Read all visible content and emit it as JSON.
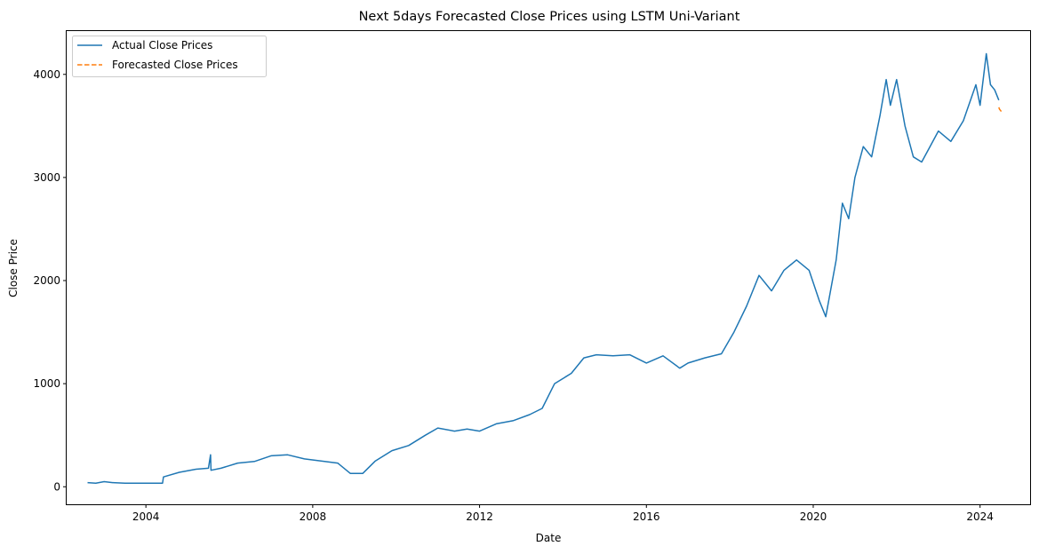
{
  "chart_data": {
    "type": "line",
    "title": "Next 5days Forecasted Close Prices using LSTM Uni-Variant",
    "xlabel": "Date",
    "ylabel": "Close Price",
    "xlim": [
      2002.1,
      2025.2
    ],
    "ylim": [
      -170,
      4420
    ],
    "x_ticks": [
      2004,
      2008,
      2012,
      2016,
      2020,
      2024
    ],
    "x_tick_labels": [
      "2004",
      "2008",
      "2012",
      "2016",
      "2020",
      "2024"
    ],
    "y_ticks": [
      0,
      1000,
      2000,
      3000,
      4000
    ],
    "y_tick_labels": [
      "0",
      "1000",
      "2000",
      "3000",
      "4000"
    ],
    "grid": false,
    "legend": "top-left",
    "colors": {
      "actual": "#1f77b4",
      "forecast": "#ff7f0e"
    },
    "series": [
      {
        "name": "Actual Close Prices",
        "style": "solid",
        "x": [
          2002.6,
          2002.8,
          2003.0,
          2003.2,
          2003.5,
          2004.0,
          2004.4,
          2004.42,
          2004.8,
          2005.2,
          2005.5,
          2005.55,
          2005.56,
          2005.8,
          2006.2,
          2006.6,
          2007.0,
          2007.4,
          2007.8,
          2008.2,
          2008.6,
          2008.9,
          2009.2,
          2009.5,
          2009.9,
          2010.3,
          2010.7,
          2011.0,
          2011.4,
          2011.7,
          2012.0,
          2012.4,
          2012.8,
          2013.2,
          2013.5,
          2013.8,
          2014.2,
          2014.5,
          2014.8,
          2015.2,
          2015.6,
          2016.0,
          2016.4,
          2016.8,
          2017.0,
          2017.4,
          2017.8,
          2018.1,
          2018.4,
          2018.7,
          2019.0,
          2019.3,
          2019.6,
          2019.9,
          2020.15,
          2020.3,
          2020.55,
          2020.7,
          2020.85,
          2021.0,
          2021.2,
          2021.4,
          2021.6,
          2021.75,
          2021.85,
          2022.0,
          2022.2,
          2022.4,
          2022.6,
          2022.8,
          2023.0,
          2023.3,
          2023.6,
          2023.9,
          2024.0,
          2024.15,
          2024.25,
          2024.35,
          2024.45
        ],
        "y": [
          40,
          35,
          50,
          40,
          35,
          35,
          35,
          95,
          140,
          170,
          180,
          310,
          160,
          180,
          230,
          245,
          300,
          310,
          270,
          250,
          230,
          130,
          130,
          250,
          350,
          400,
          500,
          570,
          540,
          560,
          540,
          610,
          640,
          700,
          760,
          1000,
          1100,
          1250,
          1280,
          1270,
          1280,
          1200,
          1270,
          1150,
          1200,
          1250,
          1290,
          1500,
          1750,
          2050,
          1900,
          2100,
          2200,
          2100,
          1800,
          1650,
          2200,
          2750,
          2600,
          3000,
          3300,
          3200,
          3600,
          3950,
          3700,
          3950,
          3500,
          3200,
          3150,
          3300,
          3450,
          3350,
          3550,
          3900,
          3700,
          4200,
          3900,
          3850,
          3750
        ]
      },
      {
        "name": "Forecasted Close Prices",
        "style": "dashed",
        "x": [
          2024.45,
          2024.47,
          2024.49,
          2024.51,
          2024.53
        ],
        "y": [
          3680,
          3660,
          3650,
          3640,
          3630
        ]
      }
    ]
  }
}
